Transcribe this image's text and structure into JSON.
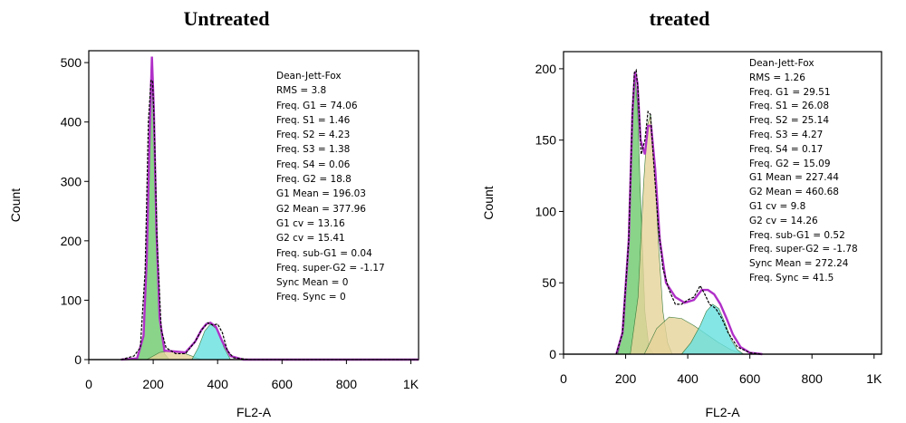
{
  "chart_data": [
    {
      "type": "area",
      "title": "Untreated",
      "xlabel": "FL2-A",
      "ylabel": "Count",
      "xlim": [
        0,
        1024
      ],
      "ylim": [
        0,
        520
      ],
      "xticks": [
        "0",
        "200",
        "400",
        "600",
        "800",
        "1K"
      ],
      "yticks": [
        "0",
        "100",
        "200",
        "300",
        "400",
        "500"
      ],
      "ytick_values": [
        0,
        100,
        200,
        300,
        400,
        500
      ],
      "annotations": [
        "Dean-Jett-Fox",
        "RMS = 3.8",
        "Freq. G1 = 74.06",
        "Freq. S1 = 1.46",
        "Freq. S2 = 4.23",
        "Freq. S3 = 1.38",
        "Freq. S4 = 0.06",
        "Freq. G2 = 18.8",
        "G1 Mean = 196.03",
        "G2 Mean = 377.96",
        "G1 cv = 13.16",
        "G2 cv = 15.41",
        "Freq. sub-G1 = 0.04",
        "Freq. super-G2 = -1.17",
        "Sync Mean = 0",
        "Freq. Sync = 0"
      ],
      "series": [
        {
          "component": "G1",
          "color": "#6cc96c",
          "x": [
            150,
            170,
            180,
            190,
            196,
            202,
            210,
            220,
            235,
            250
          ],
          "y": [
            0,
            40,
            170,
            400,
            510,
            420,
            220,
            70,
            10,
            0
          ]
        },
        {
          "component": "S",
          "color": "#e6d39a",
          "x": [
            180,
            220,
            260,
            300,
            330,
            350
          ],
          "y": [
            0,
            12,
            15,
            10,
            4,
            0
          ]
        },
        {
          "component": "G2",
          "color": "#66e0e0",
          "x": [
            320,
            340,
            360,
            378,
            400,
            420,
            440
          ],
          "y": [
            0,
            20,
            48,
            60,
            50,
            20,
            0
          ]
        },
        {
          "component": "histogram",
          "color": "#000000",
          "x": [
            100,
            140,
            160,
            175,
            185,
            193,
            198,
            203,
            212,
            225,
            240,
            270,
            300,
            330,
            350,
            370,
            385,
            400,
            415,
            430,
            450,
            500,
            1024
          ],
          "y": [
            0,
            6,
            20,
            150,
            400,
            470,
            470,
            400,
            200,
            50,
            20,
            10,
            10,
            30,
            50,
            62,
            58,
            60,
            45,
            15,
            3,
            0,
            0
          ]
        },
        {
          "component": "fit",
          "color": "#b030c8",
          "x": [
            100,
            150,
            170,
            180,
            190,
            196,
            202,
            210,
            220,
            235,
            260,
            300,
            330,
            350,
            365,
            378,
            395,
            415,
            440,
            480,
            1024
          ],
          "y": [
            0,
            2,
            40,
            170,
            400,
            510,
            420,
            220,
            70,
            15,
            14,
            12,
            30,
            50,
            60,
            62,
            55,
            30,
            6,
            0,
            0
          ]
        }
      ]
    },
    {
      "type": "area",
      "title": "treated",
      "xlabel": "FL2-A",
      "ylabel": "Count",
      "xlim": [
        0,
        1024
      ],
      "ylim": [
        0,
        212
      ],
      "xticks": [
        "0",
        "200",
        "400",
        "600",
        "800",
        "1K"
      ],
      "yticks": [
        "0",
        "50",
        "100",
        "150",
        "200"
      ],
      "ytick_values": [
        0,
        50,
        100,
        150,
        200
      ],
      "annotations": [
        "Dean-Jett-Fox",
        "RMS = 1.26",
        "Freq. G1 = 29.51",
        "Freq. S1 = 26.08",
        "Freq. S2 = 25.14",
        "Freq. S3 = 4.27",
        "Freq. S4 = 0.17",
        "Freq. G2 = 15.09",
        "G1 Mean = 227.44",
        "G2 Mean = 460.68",
        "G1 cv = 9.8",
        "G2 cv = 14.26",
        "Freq. sub-G1 = 0.52",
        "Freq. super-G2 = -1.78",
        "Sync Mean = 272.24",
        "Freq. Sync = 41.5"
      ],
      "series": [
        {
          "component": "G1",
          "color": "#6cc96c",
          "x": [
            175,
            195,
            210,
            222,
            230,
            238,
            248,
            262,
            275,
            290
          ],
          "y": [
            0,
            20,
            80,
            170,
            195,
            175,
            110,
            30,
            5,
            0
          ]
        },
        {
          "component": "S",
          "color": "#e6d39a",
          "x": [
            215,
            240,
            258,
            270,
            280,
            292,
            305,
            320,
            335,
            350
          ],
          "y": [
            0,
            40,
            120,
            160,
            168,
            140,
            80,
            30,
            8,
            0
          ]
        },
        {
          "component": "S-broad",
          "color": "#e6d39a",
          "x": [
            260,
            300,
            340,
            380,
            420,
            460,
            500,
            540,
            580
          ],
          "y": [
            0,
            18,
            26,
            25,
            20,
            14,
            8,
            3,
            0
          ]
        },
        {
          "component": "G2",
          "color": "#66e0e0",
          "x": [
            380,
            410,
            440,
            460,
            480,
            500,
            520,
            540,
            560,
            580
          ],
          "y": [
            0,
            8,
            20,
            30,
            35,
            32,
            22,
            10,
            3,
            0
          ]
        },
        {
          "component": "histogram",
          "color": "#000000",
          "x": [
            170,
            190,
            210,
            222,
            228,
            234,
            240,
            250,
            262,
            272,
            280,
            290,
            305,
            320,
            340,
            360,
            380,
            400,
            420,
            440,
            455,
            470,
            490,
            510,
            530,
            560,
            600,
            640
          ],
          "y": [
            0,
            15,
            80,
            170,
            197,
            199,
            185,
            140,
            150,
            170,
            168,
            135,
            90,
            60,
            45,
            35,
            35,
            38,
            40,
            48,
            42,
            35,
            32,
            25,
            15,
            5,
            1,
            0
          ]
        },
        {
          "component": "fit",
          "color": "#b030c8",
          "x": [
            170,
            190,
            210,
            222,
            230,
            238,
            248,
            262,
            272,
            282,
            295,
            310,
            330,
            360,
            390,
            420,
            445,
            465,
            485,
            505,
            525,
            545,
            570,
            600,
            640
          ],
          "y": [
            0,
            15,
            80,
            170,
            198,
            190,
            150,
            140,
            160,
            160,
            130,
            80,
            50,
            40,
            36,
            38,
            45,
            45,
            42,
            35,
            25,
            14,
            5,
            1,
            0
          ]
        }
      ]
    }
  ]
}
